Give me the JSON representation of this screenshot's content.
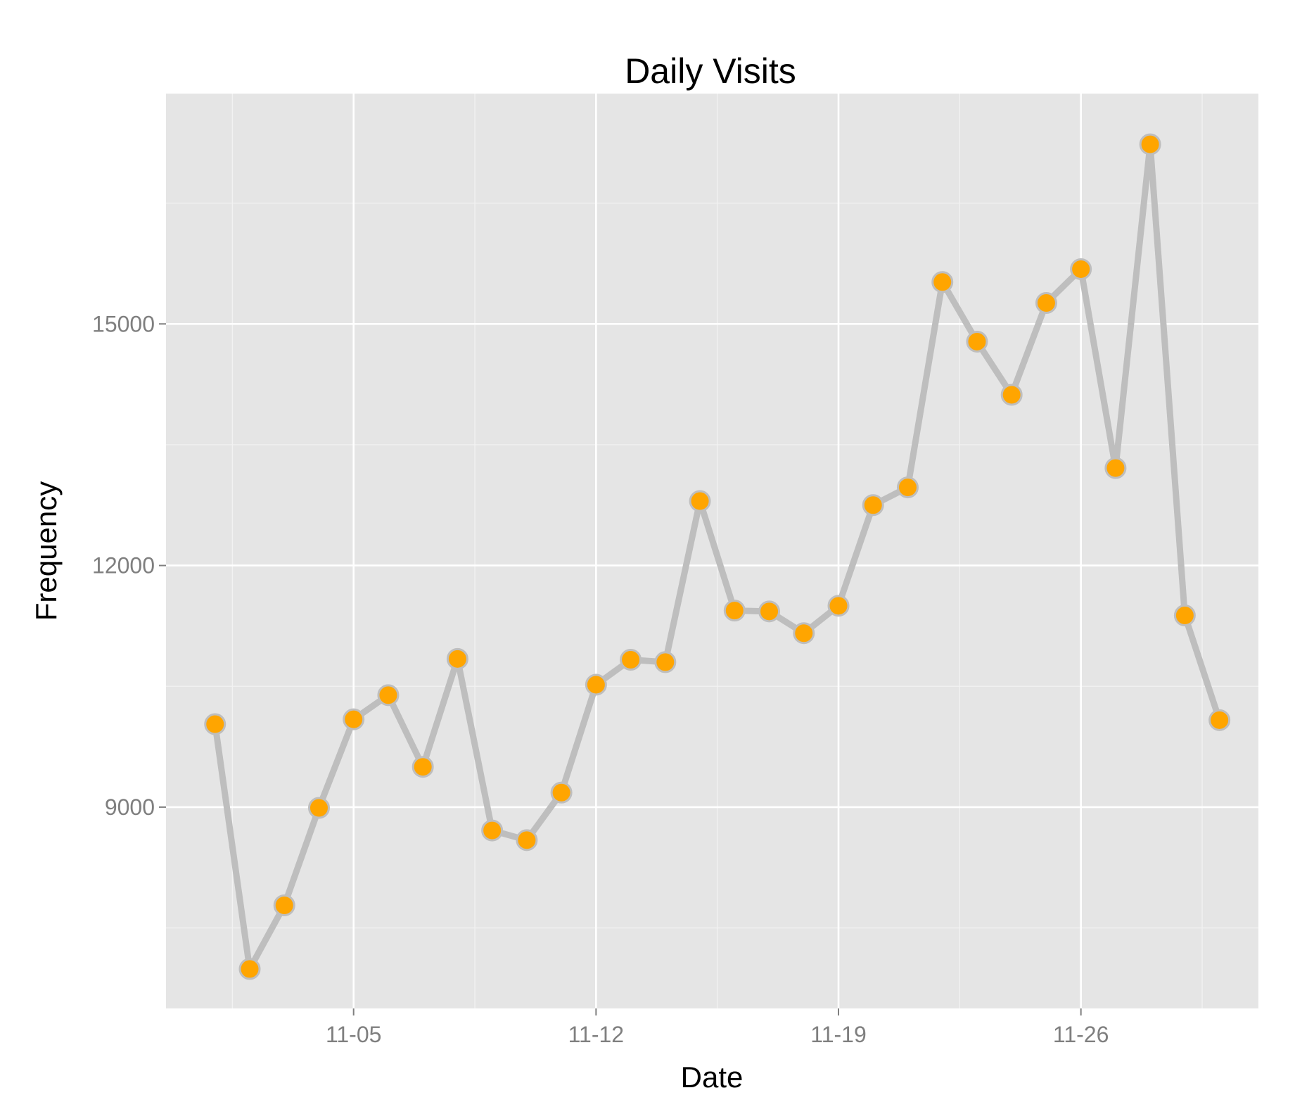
{
  "chart_data": {
    "type": "line",
    "title": "Daily Visits",
    "xlabel": "Date",
    "ylabel": "Frequency",
    "x": [
      "11-01",
      "11-02",
      "11-03",
      "11-04",
      "11-05",
      "11-06",
      "11-07",
      "11-08",
      "11-09",
      "11-10",
      "11-11",
      "11-12",
      "11-13",
      "11-14",
      "11-15",
      "11-16",
      "11-17",
      "11-18",
      "11-19",
      "11-20",
      "11-21",
      "11-22",
      "11-23",
      "11-24",
      "11-25",
      "11-26",
      "11-27",
      "11-28",
      "11-29",
      "11-30"
    ],
    "series": [
      {
        "values": [
          10030,
          6990,
          7780,
          8990,
          10090,
          10390,
          9500,
          10840,
          8710,
          8590,
          9180,
          10520,
          10830,
          10800,
          12800,
          11440,
          11430,
          11160,
          11500,
          12750,
          12970,
          15520,
          14780,
          14120,
          15260,
          15680,
          13210,
          17230,
          11380,
          10080
        ]
      }
    ],
    "x_ticks": [
      "11-05",
      "11-12",
      "11-19",
      "11-26"
    ],
    "y_ticks": [
      9000,
      12000,
      15000
    ],
    "xlim": [
      "10-30 14:00",
      "12-01 03:00"
    ],
    "ylim": [
      6500,
      17860
    ],
    "grid": true,
    "colors": {
      "panel": "#e5e5e5",
      "grid_major": "#ffffff",
      "grid_minor": "#f2f2f2",
      "line": "#bebebe",
      "point_fill": "#ffa500",
      "point_stroke": "#bebebe"
    }
  }
}
